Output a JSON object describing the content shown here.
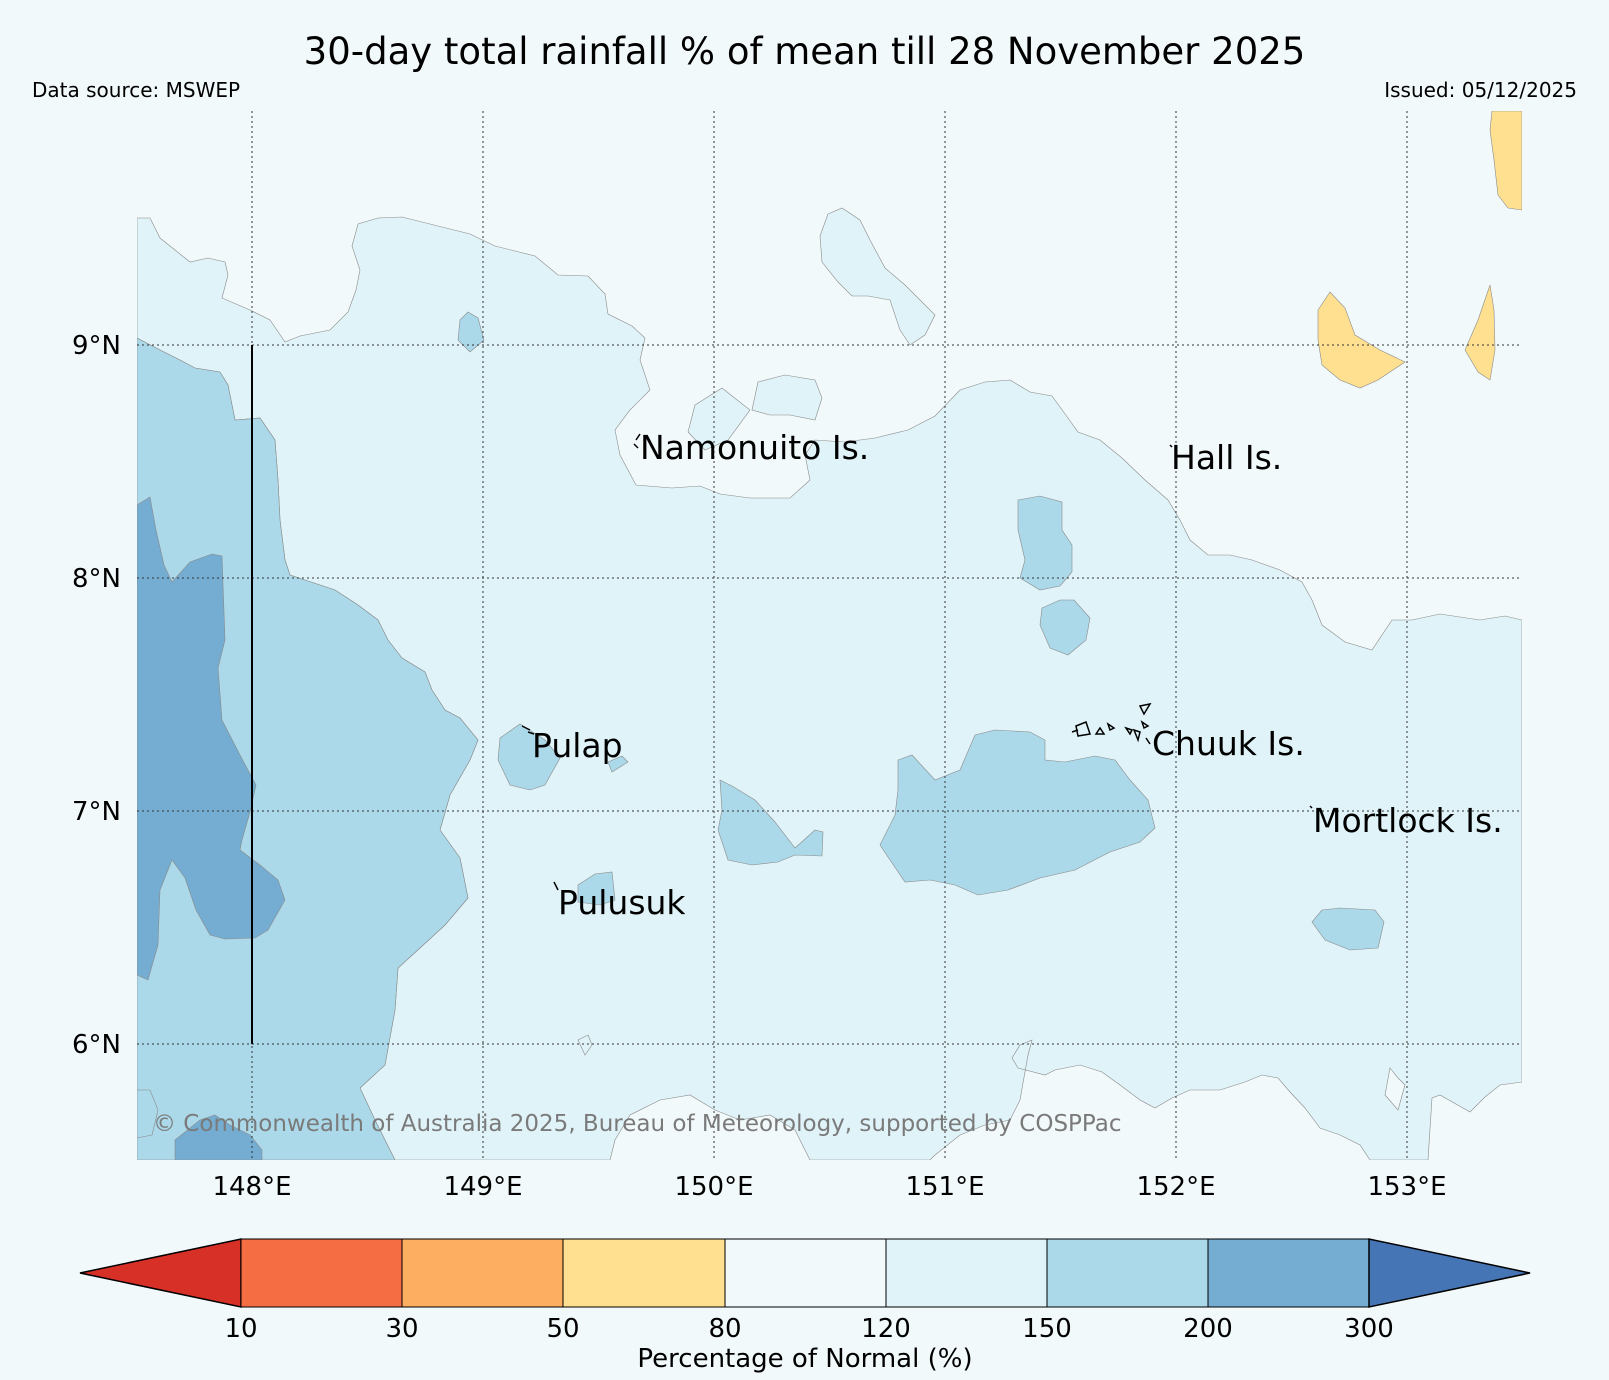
{
  "title": "30-day total rainfall % of mean till 28 November 2025",
  "data_source": "Data source: MSWEP",
  "issued": "Issued: 05/12/2025",
  "copyright": "© Commonwealth of Australia 2025, Bureau of Meteorology, supported by COSPPac",
  "latitude_labels": [
    "9°N",
    "8°N",
    "7°N",
    "6°N"
  ],
  "longitude_labels": [
    "148°E",
    "149°E",
    "150°E",
    "151°E",
    "152°E",
    "153°E"
  ],
  "places": [
    "Namonuito Is.",
    "Hall Is.",
    "Pulap",
    "Chuuk Is.",
    "Mortlock Is.",
    "Pulusuk"
  ],
  "colorbar": {
    "label": "Percentage of Normal (%)",
    "ticks": [
      "10",
      "30",
      "50",
      "80",
      "120",
      "150",
      "200",
      "300"
    ],
    "colors": {
      "under": "#d73027",
      "c10_30": "#f46d43",
      "c30_50": "#fdae61",
      "c50_80": "#fee090",
      "c80_120": "#f2f9fb",
      "c120_150": "#e0f3f8",
      "c150_200": "#abd9e9",
      "c200_300": "#74add1",
      "over": "#4575b4"
    }
  }
}
